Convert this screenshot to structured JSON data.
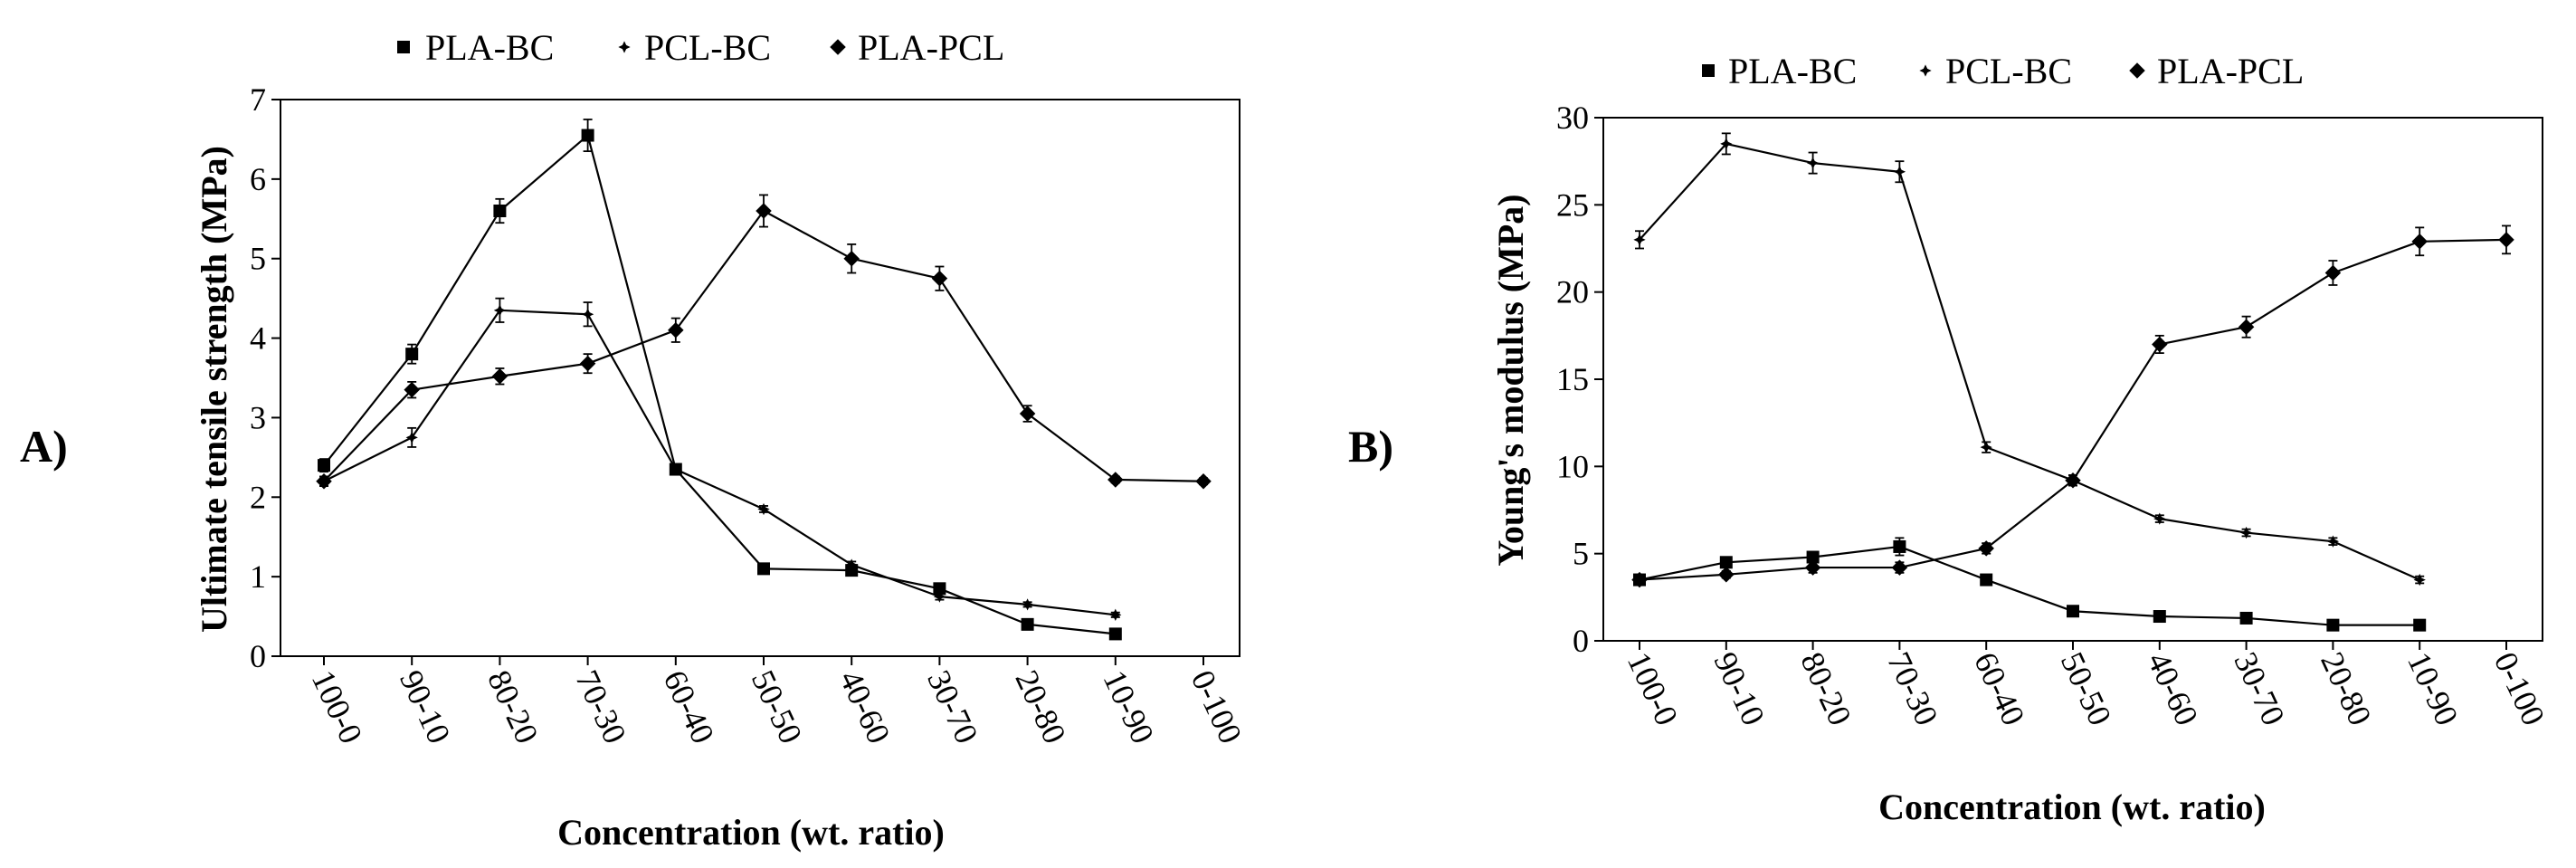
{
  "chart_data": [
    {
      "type": "line",
      "panel_label": "A)",
      "title": "",
      "xlabel": "Concentration (wt. ratio)",
      "ylabel": "Ultimate tensile strength (MPa)",
      "categories": [
        "100-0",
        "90-10",
        "80-20",
        "70-30",
        "60-40",
        "50-50",
        "40-60",
        "30-70",
        "20-80",
        "10-90",
        "0-100"
      ],
      "ylim": [
        0,
        7
      ],
      "yticks": [
        0,
        1,
        2,
        3,
        4,
        5,
        6,
        7
      ],
      "grid": false,
      "legend_position": "top",
      "series": [
        {
          "name": "PLA-BC",
          "marker": "square",
          "values": [
            2.4,
            3.8,
            5.6,
            6.55,
            2.35,
            1.1,
            1.08,
            0.85,
            0.4,
            0.28,
            null
          ],
          "errors": [
            0.08,
            0.12,
            0.15,
            0.2,
            0.06,
            0.05,
            0.05,
            0.05,
            0.05,
            0.03,
            null
          ]
        },
        {
          "name": "PCL-BC",
          "marker": "cross",
          "values": [
            2.2,
            2.75,
            4.35,
            4.3,
            2.35,
            1.85,
            1.15,
            0.75,
            0.65,
            0.52,
            null
          ],
          "errors": [
            0.06,
            0.12,
            0.15,
            0.15,
            0.05,
            0.04,
            0.04,
            0.04,
            0.03,
            0.03,
            null
          ]
        },
        {
          "name": "PLA-PCL",
          "marker": "diamond",
          "values": [
            2.2,
            3.35,
            3.52,
            3.68,
            4.1,
            5.6,
            5.0,
            4.75,
            3.05,
            2.22,
            2.2
          ],
          "errors": [
            0.06,
            0.1,
            0.1,
            0.12,
            0.15,
            0.2,
            0.18,
            0.15,
            0.1,
            0.04,
            0.04
          ]
        }
      ]
    },
    {
      "type": "line",
      "panel_label": "B)",
      "title": "",
      "xlabel": "Concentration (wt. ratio)",
      "ylabel": "Young's modulus  (MPa)",
      "categories": [
        "100-0",
        "90-10",
        "80-20",
        "70-30",
        "60-40",
        "50-50",
        "40-60",
        "30-70",
        "20-80",
        "10-90",
        "0-100"
      ],
      "ylim": [
        0,
        30
      ],
      "yticks": [
        0,
        5,
        10,
        15,
        20,
        25,
        30
      ],
      "grid": false,
      "legend_position": "top",
      "series": [
        {
          "name": "PLA-BC",
          "marker": "square",
          "values": [
            3.5,
            4.5,
            4.8,
            5.4,
            3.5,
            1.7,
            1.4,
            1.3,
            0.9,
            0.9,
            null
          ],
          "errors": [
            0.3,
            0.3,
            0.3,
            0.5,
            0.2,
            0.1,
            0.1,
            0.1,
            0.1,
            0.1,
            null
          ]
        },
        {
          "name": "PCL-BC",
          "marker": "cross",
          "values": [
            23.0,
            28.5,
            27.4,
            26.9,
            11.1,
            9.2,
            7.0,
            6.2,
            5.7,
            3.5,
            null
          ],
          "errors": [
            0.5,
            0.6,
            0.6,
            0.6,
            0.3,
            0.3,
            0.2,
            0.2,
            0.2,
            0.2,
            null
          ]
        },
        {
          "name": "PLA-PCL",
          "marker": "diamond",
          "values": [
            3.5,
            3.8,
            4.2,
            4.2,
            5.3,
            9.2,
            17.0,
            18.0,
            21.1,
            22.9,
            23.0
          ],
          "errors": [
            0.2,
            0.2,
            0.3,
            0.3,
            0.3,
            0.3,
            0.5,
            0.6,
            0.7,
            0.8,
            0.8
          ]
        }
      ]
    }
  ]
}
